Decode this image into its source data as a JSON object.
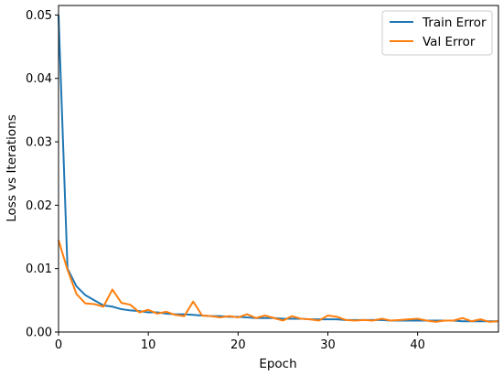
{
  "chart_data": {
    "type": "line",
    "title": "",
    "xlabel": "Epoch",
    "ylabel": "Loss vs Iterations",
    "xlim": [
      0,
      49
    ],
    "ylim": [
      0.0,
      0.0515
    ],
    "xticks": [
      0,
      10,
      20,
      30,
      40
    ],
    "yticks": [
      0.0,
      0.01,
      0.02,
      0.03,
      0.04,
      0.05
    ],
    "ytick_labels": [
      "0.00",
      "0.01",
      "0.02",
      "0.03",
      "0.04",
      "0.05"
    ],
    "grid": false,
    "legend_position": "top-right",
    "x": [
      0,
      1,
      2,
      3,
      4,
      5,
      6,
      7,
      8,
      9,
      10,
      11,
      12,
      13,
      14,
      15,
      16,
      17,
      18,
      19,
      20,
      21,
      22,
      23,
      24,
      25,
      26,
      27,
      28,
      29,
      30,
      31,
      32,
      33,
      34,
      35,
      36,
      37,
      38,
      39,
      40,
      41,
      42,
      43,
      44,
      45,
      46,
      47,
      48,
      49
    ],
    "series": [
      {
        "name": "Train Error",
        "color": "#1f77b4",
        "values": [
          0.05,
          0.01,
          0.0072,
          0.0058,
          0.005,
          0.0042,
          0.004,
          0.0036,
          0.0034,
          0.0033,
          0.0031,
          0.0031,
          0.0029,
          0.0028,
          0.0028,
          0.0027,
          0.0026,
          0.0025,
          0.0025,
          0.0024,
          0.0024,
          0.0023,
          0.0022,
          0.0022,
          0.0022,
          0.0021,
          0.0021,
          0.0021,
          0.002,
          0.002,
          0.002,
          0.002,
          0.0019,
          0.0019,
          0.0019,
          0.0019,
          0.0019,
          0.0018,
          0.0018,
          0.0018,
          0.0018,
          0.0018,
          0.0018,
          0.0018,
          0.0018,
          0.0017,
          0.0017,
          0.0017,
          0.0017,
          0.0017
        ]
      },
      {
        "name": "Val Error",
        "color": "#ff7f0e",
        "values": [
          0.0145,
          0.0098,
          0.006,
          0.0045,
          0.0044,
          0.004,
          0.0067,
          0.0046,
          0.0043,
          0.0031,
          0.0035,
          0.0029,
          0.0032,
          0.0027,
          0.0025,
          0.0048,
          0.0026,
          0.0025,
          0.0023,
          0.0025,
          0.0023,
          0.0028,
          0.0022,
          0.0026,
          0.0022,
          0.0018,
          0.0025,
          0.0021,
          0.002,
          0.0018,
          0.0026,
          0.0024,
          0.0019,
          0.0018,
          0.0019,
          0.0018,
          0.0021,
          0.0018,
          0.0019,
          0.002,
          0.0021,
          0.0018,
          0.0016,
          0.0018,
          0.0018,
          0.0022,
          0.0017,
          0.002,
          0.0016,
          0.0017
        ]
      }
    ]
  }
}
